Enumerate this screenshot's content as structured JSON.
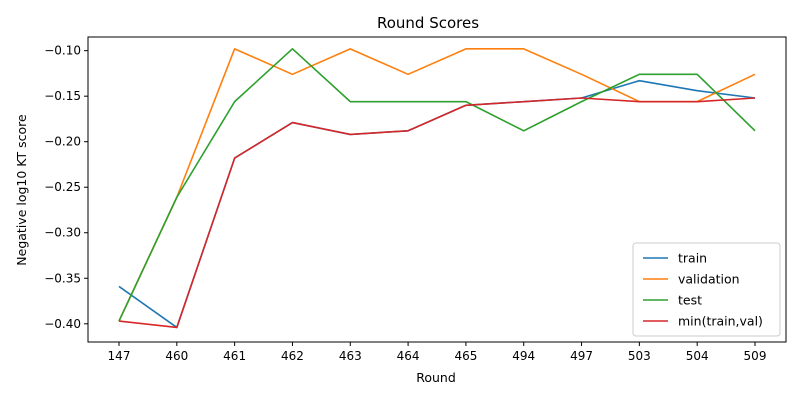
{
  "chart_data": {
    "type": "line",
    "title": "Round Scores",
    "xlabel": "Round",
    "ylabel": "Negative log10 KT score",
    "categories": [
      "147",
      "460",
      "461",
      "462",
      "463",
      "464",
      "465",
      "494",
      "497",
      "503",
      "504",
      "509"
    ],
    "ylim": [
      -0.42,
      -0.085
    ],
    "yticks": [
      -0.1,
      -0.15,
      -0.2,
      -0.25,
      -0.3,
      -0.35,
      -0.4
    ],
    "ytick_labels": [
      "−0.10",
      "−0.15",
      "−0.20",
      "−0.25",
      "−0.30",
      "−0.35",
      "−0.40"
    ],
    "grid": false,
    "legend_position": "lower-right",
    "series": [
      {
        "name": "train",
        "color": "#1f77b4",
        "values": [
          -0.359,
          -0.404,
          -0.218,
          -0.179,
          -0.192,
          -0.188,
          -0.16,
          -0.156,
          -0.152,
          -0.133,
          -0.144,
          -0.152
        ]
      },
      {
        "name": "validation",
        "color": "#ff7f0e",
        "values": [
          -0.397,
          -0.261,
          -0.098,
          -0.126,
          -0.098,
          -0.126,
          -0.098,
          -0.098,
          -0.126,
          -0.156,
          -0.156,
          -0.126
        ]
      },
      {
        "name": "test",
        "color": "#2ca02c",
        "values": [
          -0.397,
          -0.261,
          -0.156,
          -0.098,
          -0.156,
          -0.156,
          -0.156,
          -0.188,
          -0.156,
          -0.126,
          -0.126,
          -0.188
        ]
      },
      {
        "name": "min(train,val)",
        "color": "#d62728",
        "values": [
          -0.397,
          -0.404,
          -0.218,
          -0.179,
          -0.192,
          -0.188,
          -0.16,
          -0.156,
          -0.152,
          -0.156,
          -0.156,
          -0.152
        ]
      }
    ]
  }
}
